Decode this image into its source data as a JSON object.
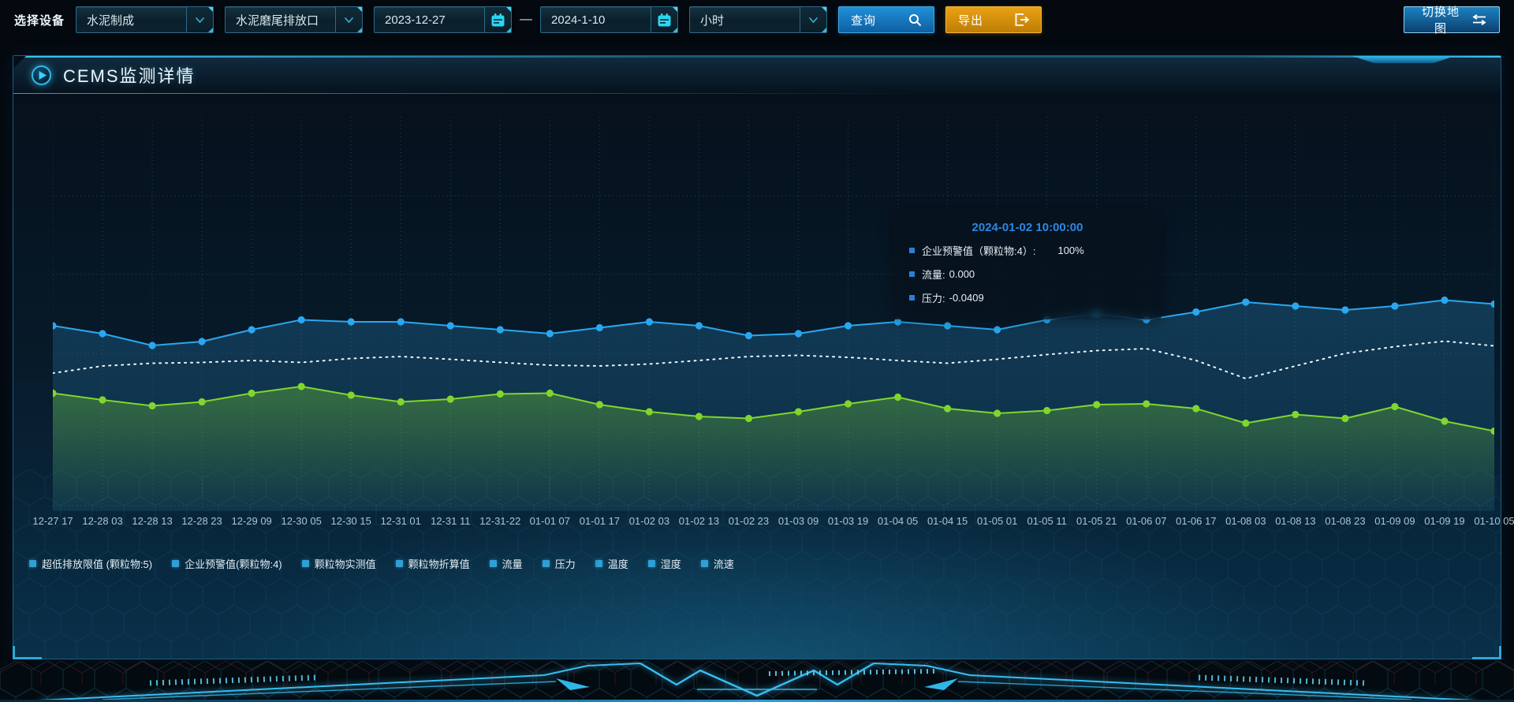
{
  "toolbar": {
    "device_label": "选择设备",
    "device_type": "水泥制成",
    "outlet": "水泥磨尾排放口",
    "date_start": "2023-12-27",
    "date_separator": "—",
    "date_end": "2024-1-10",
    "interval": "小时",
    "query_label": "查询",
    "export_label": "导出",
    "switch_map_label": "切换地图",
    "icons": {
      "device_type": "chevron-down-icon",
      "outlet": "chevron-down-icon",
      "dates": "calendar-icon",
      "interval": "chevron-down-icon",
      "query": "search-icon",
      "export": "export-arrow-icon",
      "switch_map": "swap-arrows-icon"
    }
  },
  "panel": {
    "title": "CEMS监测详情",
    "title_icon": "play-icon"
  },
  "tooltip": {
    "title": "2024-01-02 10:00:00",
    "rows": [
      {
        "label": "企业预警值（颗粒物:4）:",
        "value": "100%"
      },
      {
        "label": "流量:",
        "value": "0.000"
      },
      {
        "label": "压力:",
        "value": "-0.0409"
      }
    ]
  },
  "legend": {
    "items": [
      "超低排放限值 (颗粒物:5)",
      "企业预警值(颗粒物:4)",
      "颗粒物实测值",
      "颗粒物折算值",
      "流量",
      "压力",
      "温度",
      "湿度",
      "流速"
    ]
  },
  "chart_data": {
    "type": "line",
    "title": "CEMS监测详情",
    "x_labels": [
      "12-27 17",
      "12-28 03",
      "12-28 13",
      "12-28 23",
      "12-29 09",
      "12-30 05",
      "12-30 15",
      "12-31 01",
      "12-31 11",
      "12-31-22",
      "01-01 07",
      "01-01 17",
      "01-02 03",
      "01-02 13",
      "01-02 23",
      "01-03 09",
      "01-03 19",
      "01-04 05",
      "01-04 15",
      "01-05 01",
      "01-05 11",
      "01-05 21",
      "01-06 07",
      "01-06 17",
      "01-08 03",
      "01-08 13",
      "01-08 23",
      "01-09 09",
      "01-09 19",
      "01-10 05"
    ],
    "y_axis": {
      "ticks_visible": false,
      "note": "no y-axis labels shown; series values estimated as percent of plot height (0=bottom, 100=top)"
    },
    "grid": "dotted",
    "legend_position": "bottom-left",
    "tooltip_anchor": "2024-01-02 10:00:00",
    "series": [
      {
        "name": "企业预警值(颗粒物:4)",
        "color": "#2aa7f0",
        "line": "solid",
        "markers": true,
        "area": true,
        "values": [
          47,
          45,
          42,
          43,
          46,
          48.5,
          48,
          48,
          47,
          46,
          45,
          46.5,
          48,
          47,
          44.5,
          45,
          47,
          48,
          47,
          46,
          48.5,
          50,
          48.5,
          50.5,
          53,
          52,
          51,
          52,
          53.5,
          52.5
        ]
      },
      {
        "name": "流量",
        "color": "#eef5f8",
        "line": "dotted",
        "markers": false,
        "area": false,
        "values": [
          35,
          36.8,
          37.5,
          37.7,
          38.2,
          37.7,
          38.7,
          39.2,
          38.5,
          37.7,
          37,
          36.8,
          37.3,
          38.2,
          39.2,
          39.5,
          39,
          38.2,
          37.5,
          38.5,
          39.7,
          40.7,
          41.2,
          38.2,
          33.6,
          36.8,
          40,
          41.7,
          43.1,
          41.9
        ]
      },
      {
        "name": "压力",
        "color": "#80d62c",
        "line": "solid",
        "markers": true,
        "area": true,
        "values": [
          29.9,
          28.2,
          26.7,
          27.7,
          29.9,
          31.6,
          29.4,
          27.7,
          28.4,
          29.7,
          29.9,
          27,
          25.2,
          24,
          23.5,
          25.2,
          27.2,
          28.9,
          26,
          24.8,
          25.5,
          27,
          27.2,
          26,
          22.3,
          24.5,
          23.5,
          26.5,
          22.8,
          20.3
        ]
      }
    ]
  },
  "colors": {
    "accent_cyan": "#3ac4f2",
    "query_blue": "#1588cc",
    "export_orange": "#d8930e",
    "tooltip_title_blue": "#2f86e0",
    "legend_marker_blue": "#2f9fd6",
    "grid_dotted": "#7dafc3",
    "x_label": "#a9c6d6"
  }
}
